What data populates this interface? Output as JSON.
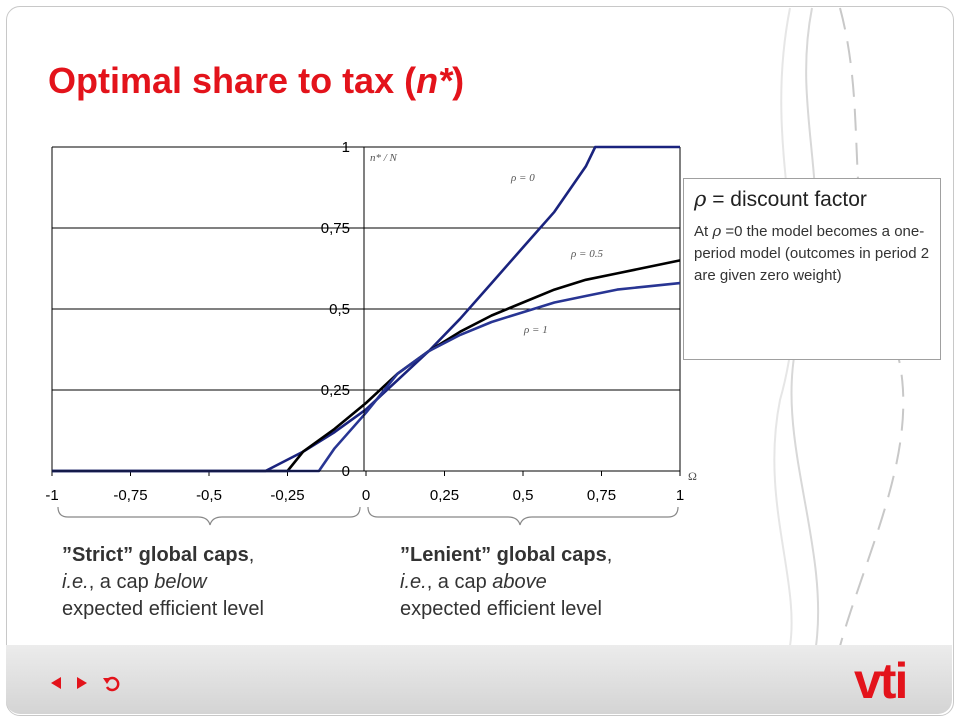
{
  "title_prefix": "Optimal share to tax (",
  "title_var": "n*",
  "title_suffix": ")",
  "info_box": {
    "heading_symbol": "ρ",
    "heading_text": " = discount factor",
    "body_prefix": "At ",
    "body_symbol": "ρ",
    "body_text": " =0 the model becomes a one-period model (outcomes in period 2 are given zero weight)"
  },
  "captions": {
    "strict": {
      "quoted": "”Strict” global caps",
      "comma": ",",
      "ie": "i.e.",
      "middle": ", a cap ",
      "rel": "below",
      "end": "expected efficient level"
    },
    "lenient": {
      "quoted": "”Lenient” global caps",
      "comma": ",",
      "ie": "i.e.",
      "middle": ", a cap ",
      "rel": "above",
      "end": "expected efficient level"
    }
  },
  "footer": {
    "logo": "vti"
  },
  "icons": {
    "prev": "triangle-left-icon",
    "next": "triangle-right-icon",
    "return": "return-arrow-icon"
  },
  "colors": {
    "title": "#e3131b",
    "rho0": "#1a237e",
    "rho05": "#000000",
    "rho1": "#283593",
    "grid": "#000000"
  },
  "chart_data": {
    "type": "line",
    "y_axis_label": "n* / N",
    "x_axis_label": "Ω",
    "xlim": [
      -1,
      1
    ],
    "ylim": [
      0,
      1
    ],
    "xtick_labels": [
      "-1",
      "-0,75",
      "-0,5",
      "-0,25",
      "0",
      "0,25",
      "0,5",
      "0,75",
      "1"
    ],
    "xtick_values": [
      -1,
      -0.75,
      -0.5,
      -0.25,
      0,
      0.25,
      0.5,
      0.75,
      1
    ],
    "ytick_labels": [
      "0",
      "0,25",
      "0,5",
      "0,75",
      "1"
    ],
    "ytick_values": [
      0,
      0.25,
      0.5,
      0.75,
      1
    ],
    "grid": "horizontal",
    "series": [
      {
        "name": "ρ = 0",
        "x": [
          -1,
          -0.32,
          -0.2,
          -0.1,
          0,
          0.1,
          0.2,
          0.3,
          0.4,
          0.5,
          0.6,
          0.7,
          0.73,
          1
        ],
        "y": [
          0,
          0,
          0.06,
          0.12,
          0.19,
          0.28,
          0.37,
          0.47,
          0.58,
          0.69,
          0.8,
          0.94,
          1,
          1
        ]
      },
      {
        "name": "ρ = 0.5",
        "x": [
          -1,
          -0.25,
          -0.2,
          -0.1,
          0,
          0.1,
          0.2,
          0.3,
          0.4,
          0.5,
          0.6,
          0.7,
          0.8,
          0.9,
          1
        ],
        "y": [
          0,
          0,
          0.06,
          0.13,
          0.21,
          0.3,
          0.37,
          0.43,
          0.48,
          0.52,
          0.56,
          0.59,
          0.61,
          0.63,
          0.65
        ]
      },
      {
        "name": "ρ = 1",
        "x": [
          -1,
          -0.15,
          -0.1,
          0,
          0.1,
          0.2,
          0.3,
          0.4,
          0.5,
          0.6,
          0.7,
          0.8,
          0.9,
          1
        ],
        "y": [
          0,
          0,
          0.07,
          0.18,
          0.3,
          0.37,
          0.42,
          0.46,
          0.49,
          0.52,
          0.54,
          0.56,
          0.57,
          0.58
        ]
      }
    ]
  }
}
